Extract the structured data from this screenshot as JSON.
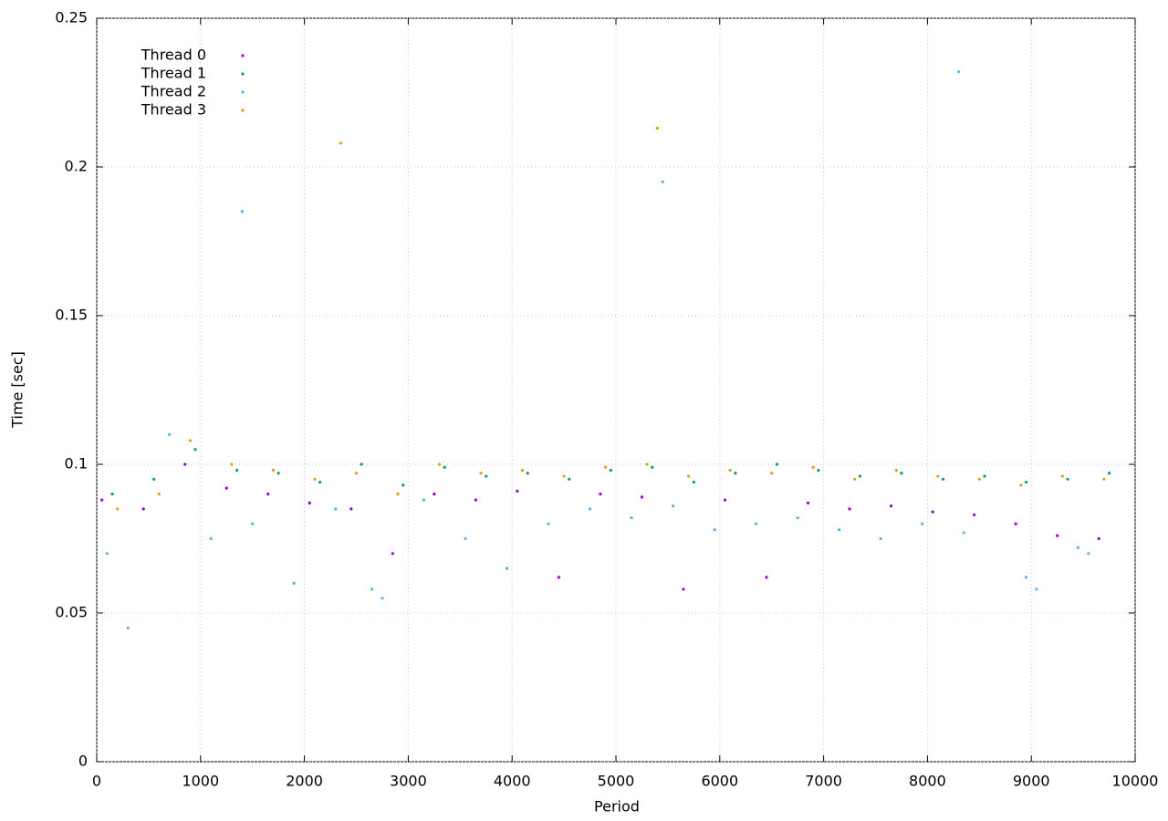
{
  "chart_data": {
    "type": "scatter",
    "xlabel": "Period",
    "ylabel": "Time [sec]",
    "xlim": [
      0,
      10000
    ],
    "xticks": [
      0,
      1000,
      2000,
      3000,
      4000,
      5000,
      6000,
      7000,
      8000,
      9000,
      10000
    ],
    "ylim": [
      0,
      0.25
    ],
    "yticks": [
      0,
      0.05,
      0.1,
      0.15,
      0.2,
      0.25
    ],
    "grid": true,
    "legend": "top-left",
    "series": [
      {
        "name": "Thread 0",
        "color": "#9400d3",
        "x": [
          50,
          450,
          850,
          1250,
          1650,
          2050,
          2450,
          2850,
          3250,
          3650,
          4050,
          4450,
          4850,
          5250,
          5650,
          6050,
          6450,
          6850,
          7250,
          7650,
          8050,
          8450,
          8850,
          9250,
          9650
        ],
        "values": [
          0.088,
          0.085,
          0.1,
          0.092,
          0.09,
          0.087,
          0.085,
          0.07,
          0.09,
          0.088,
          0.091,
          0.062,
          0.09,
          0.089,
          0.058,
          0.088,
          0.062,
          0.087,
          0.085,
          0.086,
          0.084,
          0.083,
          0.08,
          0.076,
          0.075
        ]
      },
      {
        "name": "Thread 1",
        "color": "#009e73",
        "x": [
          150,
          550,
          950,
          1350,
          1750,
          2150,
          2550,
          2950,
          3350,
          3750,
          4150,
          4550,
          4950,
          5350,
          5750,
          6150,
          6550,
          6950,
          7350,
          7750,
          8150,
          8550,
          8950,
          9350,
          9750
        ],
        "values": [
          0.09,
          0.095,
          0.105,
          0.098,
          0.097,
          0.094,
          0.1,
          0.093,
          0.099,
          0.096,
          0.097,
          0.095,
          0.098,
          0.099,
          0.094,
          0.097,
          0.1,
          0.098,
          0.096,
          0.097,
          0.095,
          0.096,
          0.094,
          0.095,
          0.097
        ]
      },
      {
        "name": "Thread 2",
        "color": "#56b4e9",
        "x": [
          100,
          300,
          700,
          1100,
          1500,
          1900,
          2300,
          2650,
          2750,
          3150,
          3550,
          3950,
          4350,
          4750,
          5150,
          5550,
          5950,
          6350,
          6750,
          7150,
          7550,
          7950,
          8350,
          8950,
          9050,
          9450,
          9550,
          1400,
          5450,
          8300
        ],
        "values": [
          0.07,
          0.045,
          0.11,
          0.075,
          0.08,
          0.06,
          0.085,
          0.058,
          0.055,
          0.088,
          0.075,
          0.065,
          0.08,
          0.085,
          0.082,
          0.086,
          0.078,
          0.08,
          0.082,
          0.078,
          0.075,
          0.08,
          0.077,
          0.062,
          0.058,
          0.072,
          0.07,
          0.185,
          0.195,
          0.232
        ]
      },
      {
        "name": "Thread 3",
        "color": "#e69f00",
        "x": [
          200,
          600,
          900,
          1300,
          1700,
          2100,
          2500,
          2900,
          3300,
          3700,
          4100,
          4500,
          4900,
          5300,
          5700,
          6100,
          6500,
          6900,
          7300,
          7700,
          8100,
          8500,
          8900,
          9300,
          9700,
          2350,
          5400
        ],
        "values": [
          0.085,
          0.09,
          0.108,
          0.1,
          0.098,
          0.095,
          0.097,
          0.09,
          0.1,
          0.097,
          0.098,
          0.096,
          0.099,
          0.1,
          0.096,
          0.098,
          0.097,
          0.099,
          0.095,
          0.098,
          0.096,
          0.095,
          0.093,
          0.096,
          0.095,
          0.208,
          0.213
        ]
      }
    ]
  }
}
